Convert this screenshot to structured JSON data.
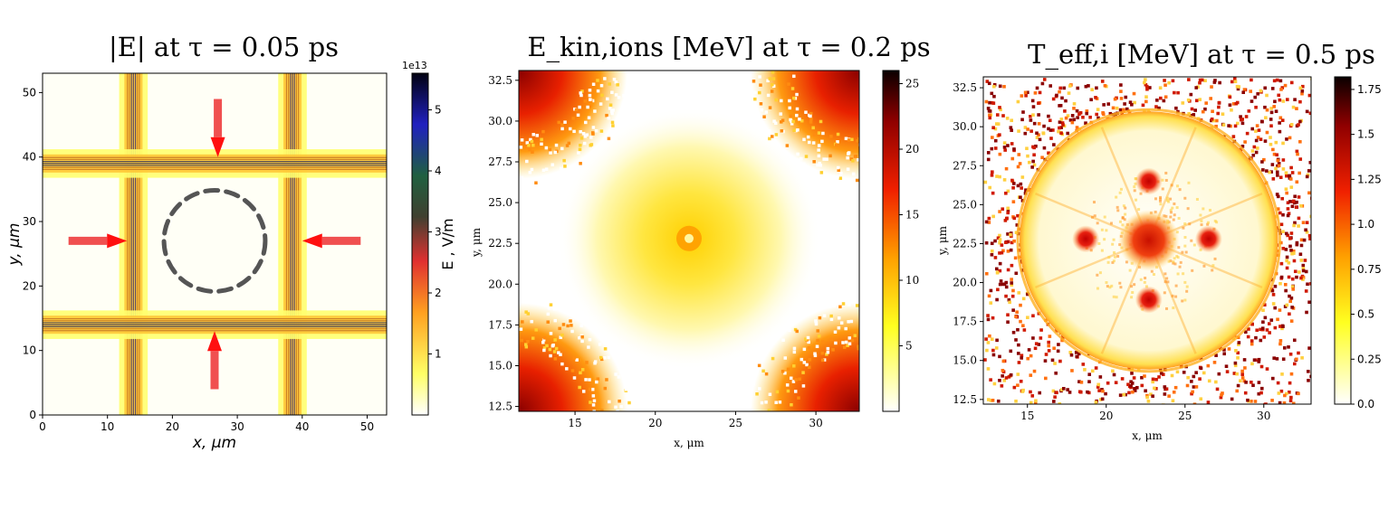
{
  "chart_data": [
    {
      "type": "heatmap",
      "title": "|E| at τ = 0.05 ps",
      "xlabel": "x, μm",
      "ylabel": "y, μm",
      "xlim": [
        0,
        53
      ],
      "ylim": [
        0,
        53
      ],
      "x_ticks": [
        0,
        10,
        20,
        30,
        40,
        50
      ],
      "y_ticks": [
        0,
        10,
        20,
        30,
        40,
        50
      ],
      "colorbar": {
        "label": "E , V/m",
        "offset_text": "1e13",
        "range": [
          0,
          5.6
        ],
        "ticks": [
          "1",
          "2",
          "3",
          "4",
          "5"
        ],
        "tick_values": [
          1,
          2,
          3,
          4,
          5
        ],
        "colormap": "gnuplot2_r"
      },
      "features": {
        "beam_positions_x": [
          14,
          38.5
        ],
        "beam_positions_y": [
          14,
          39
        ],
        "beam_extent": [
          -2,
          53
        ],
        "target_circle": {
          "center": [
            26.5,
            27
          ],
          "radius": 7.8,
          "style": "dashed",
          "color": "#555555"
        },
        "arrows": [
          {
            "from": [
              27,
              49
            ],
            "to": [
              27,
              40
            ],
            "color": "#f05050"
          },
          {
            "from": [
              26.5,
              4
            ],
            "to": [
              26.5,
              13
            ],
            "color": "#f05050"
          },
          {
            "from": [
              4,
              27
            ],
            "to": [
              13,
              27
            ],
            "color": "#f05050"
          },
          {
            "from": [
              49,
              27
            ],
            "to": [
              40,
              27
            ],
            "color": "#f05050"
          }
        ]
      },
      "grid": false
    },
    {
      "type": "heatmap",
      "title": "E_kin,ions [MeV] at τ = 0.2 ps",
      "xlabel": "x, μm",
      "ylabel": "y, μm",
      "xlim": [
        11.5,
        32.7
      ],
      "ylim": [
        12.2,
        33.1
      ],
      "x_ticks": [
        "15",
        "20",
        "25",
        "30"
      ],
      "x_tick_values": [
        15,
        20,
        25,
        30
      ],
      "y_ticks": [
        "12.5",
        "15.0",
        "17.5",
        "20.0",
        "22.5",
        "25.0",
        "27.5",
        "30.0",
        "32.5"
      ],
      "y_tick_values": [
        12.5,
        15,
        17.5,
        20,
        22.5,
        25,
        27.5,
        30,
        32.5
      ],
      "colorbar": {
        "label": "",
        "range": [
          0,
          26
        ],
        "ticks": [
          "5",
          "10",
          "15",
          "20",
          "25"
        ],
        "tick_values": [
          5,
          10,
          15,
          20,
          25
        ],
        "colormap": "hot_r"
      },
      "features": {
        "central_peak": {
          "center": [
            22.1,
            22.8
          ]
        },
        "corner_hot_regions": "four corners, values up to ~25 MeV"
      },
      "grid": false
    },
    {
      "type": "heatmap",
      "title": "T_eff,i [MeV] at τ = 0.5 ps",
      "xlabel": "x, μm",
      "ylabel": "y, μm",
      "xlim": [
        12.2,
        33
      ],
      "ylim": [
        12.2,
        33.2
      ],
      "x_ticks": [
        "15",
        "20",
        "25",
        "30"
      ],
      "x_tick_values": [
        15,
        20,
        25,
        30
      ],
      "y_ticks": [
        "12.5",
        "15.0",
        "17.5",
        "20.0",
        "22.5",
        "25.0",
        "27.5",
        "30.0",
        "32.5"
      ],
      "y_tick_values": [
        12.5,
        15,
        17.5,
        20,
        22.5,
        25,
        27.5,
        30,
        32.5
      ],
      "colorbar": {
        "label": "",
        "range": [
          0,
          1.82
        ],
        "ticks": [
          "0.0",
          "0.25",
          "0.5",
          "0.75",
          "1.0",
          "1.25",
          "1.5",
          "1.75"
        ],
        "tick_values": [
          0,
          0.25,
          0.5,
          0.75,
          1.0,
          1.25,
          1.5,
          1.75
        ],
        "colormap": "hot_r"
      },
      "features": {
        "center": [
          22.7,
          22.7
        ],
        "lobes": [
          [
            22.7,
            26.5
          ],
          [
            22.7,
            18.9
          ],
          [
            18.7,
            22.8
          ],
          [
            26.5,
            22.8
          ]
        ],
        "ring_radius": 8.2
      },
      "grid": false
    }
  ]
}
